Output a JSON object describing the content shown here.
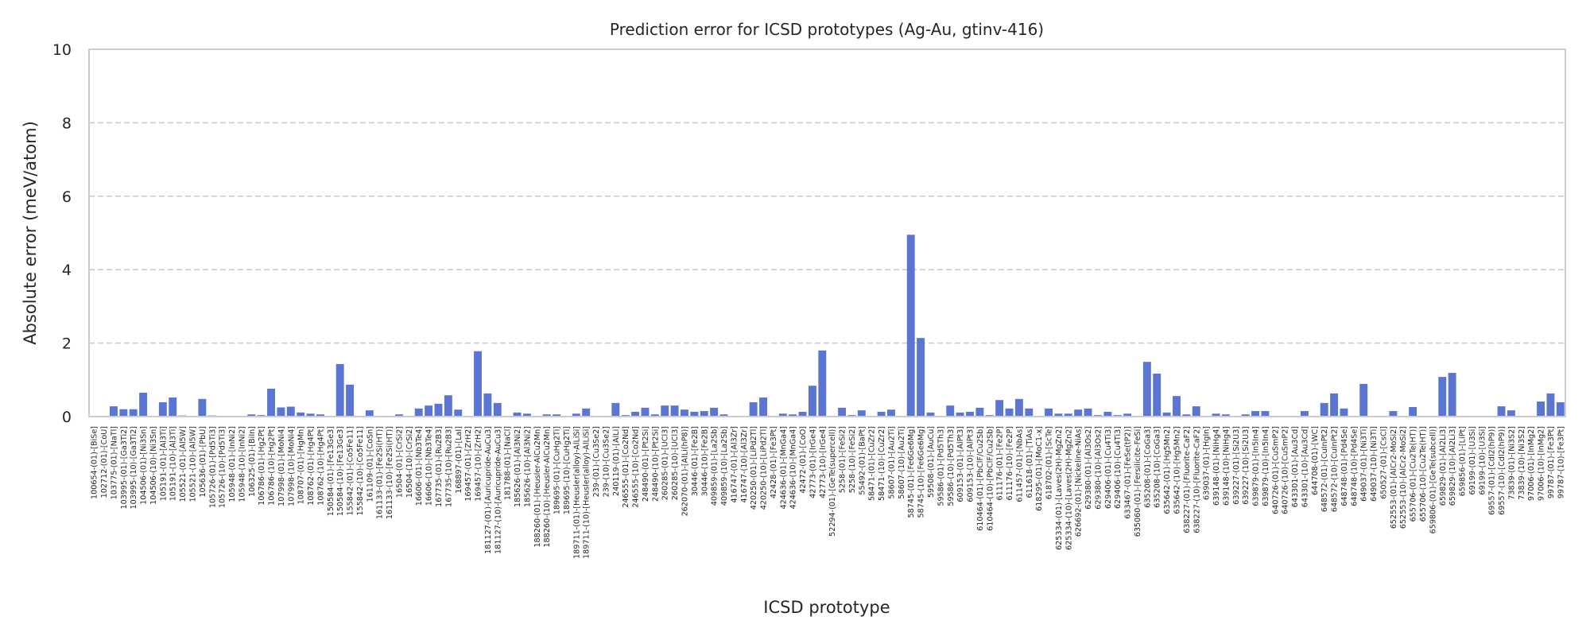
{
  "chart_data": {
    "type": "bar",
    "title": "Prediction error for ICSD prototypes (Ag-Au, gtinv-416)",
    "xlabel": "ICSD prototype",
    "ylabel": "Absolute error (meV/atom)",
    "ylim": [
      0,
      10
    ],
    "yticks": [
      0,
      2,
      4,
      6,
      8,
      10
    ],
    "grid": "y dashed",
    "bar_color": "#5a76d2",
    "categories": [
      "100654-(01)-[BiSe]",
      "102712-(01)-[CoU]",
      "103775-(01)-[NaTl]",
      "103995-(01)-[Ga3Ti2]",
      "103995-(10)-[Ga3Ti2]",
      "104506-(01)-[Ni3Sn]",
      "104506-(10)-[Ni3Sn]",
      "105191-(01)-[Al3Ti]",
      "105191-(10)-[Al3Ti]",
      "105521-(01)-[Al5W]",
      "105521-(10)-[Al5W]",
      "105636-(01)-[PbU]",
      "105726-(01)-[Pd5Ti3]",
      "105726-(10)-[Pd5Ti3]",
      "105948-(01)-[InNi2]",
      "105948-(10)-[InNi2]",
      "106325-(01)-[BiIn]",
      "106786-(01)-[Hg2Pt]",
      "106786-(10)-[Hg2Pt]",
      "107998-(01)-[MoNi4]",
      "107998-(10)-[MoNi4]",
      "108707-(01)-[HgMn]",
      "108762-(01)-[Hg4Pt]",
      "108762-(10)-[Hg4Pt]",
      "150584-(01)-[Fe13Ge3]",
      "150584-(10)-[Fe13Ge3]",
      "155842-(01)-[Co5Fe11]",
      "155842-(10)-[Co5Fe11]",
      "161109-(01)-[CoSn]",
      "161133-(01)-[Fe2Si(HT)]",
      "161133-(10)-[Fe2Si(HT)]",
      "16504-(01)-[CrSi2]",
      "16504-(10)-[CrSi2]",
      "16606-(01)-[Nb3Te4]",
      "16606-(10)-[Nb3Te4]",
      "167735-(01)-[Ru2B3]",
      "167735-(10)-[Ru2B3]",
      "168897-(01)-[LaI]",
      "169457-(01)-[ZrH2]",
      "169457-(10)-[ZrH2]",
      "181127-(01)-[Auricupride-AuCu3]",
      "181127-(10)-[Auricupride-AuCu3]",
      "181788-(01)-[NaCl]",
      "185626-(01)-[Al3Ni2]",
      "185626-(10)-[Al3Ni2]",
      "188260-(01)-[Heusler-AlCu2Mn]",
      "188260-(10)-[Heusler-AlCu2Mn]",
      "189695-(01)-[CuHg2Ti]",
      "189695-(10)-[CuHg2Ti]",
      "189711-(01)-[Heusler(alloy)-AlLiSi]",
      "189711-(10)-[Heusler(alloy)-AlLiSi]",
      "239-(01)-[Cu3Se2]",
      "239-(10)-[Cu3Se2]",
      "240119-(01)-[AlLi]",
      "246555-(01)-[Co2Nd]",
      "246555-(10)-[Co2Nd]",
      "248490-(01)-[Pt2Si]",
      "248490-(10)-[Pt2Si]",
      "260285-(01)-[UCl3]",
      "260285-(10)-[UCl3]",
      "262070-(01)-[AlLi(hP8)]",
      "30446-(01)-[Fe2B]",
      "30446-(10)-[Fe2B]",
      "409859-(01)-[La2Sb]",
      "409859-(10)-[La2Sb]",
      "416747-(01)-[Al3Zr]",
      "416747-(10)-[Al3Zr]",
      "420250-(01)-[LiPd2Tl]",
      "420250-(10)-[LiPd2Tl]",
      "42428-(01)-[Fe3Pt]",
      "424636-(01)-[MnGa4]",
      "424636-(10)-[MnGa4]",
      "42472-(01)-[CoO]",
      "42773-(01)-[IrGe4]",
      "42773-(10)-[IrGe4]",
      "52294-(01)-[GeTe(supercell)]",
      "5258-(01)-[FeSi2]",
      "5258-(10)-[FeSi2]",
      "55492-(01)-[BaPt]",
      "58471-(01)-[CuZr2]",
      "58471-(10)-[CuZr2]",
      "58607-(01)-[Au2Ti]",
      "58607-(10)-[Au2Ti]",
      "58745-(01)-[Fe6Ge6Mg]",
      "58745-(10)-[Fe6Ge6Mg]",
      "59508-(01)-[AuCu]",
      "59586-(01)-[Pd5Th3]",
      "59586-(10)-[Pd5Th3]",
      "609153-(01)-[AlPt3]",
      "609153-(10)-[AlPt3]",
      "610464-(01)-[PbClF/Cu2Sb]",
      "610464-(10)-[PbClF/Cu2Sb]",
      "611176-(01)-[Fe2P]",
      "611176-(10)-[Fe2P]",
      "611457-(01)-[NbAs]",
      "611618-(01)-[TiAs]",
      "618295-(01)-[MoC1-x]",
      "618702-(01)-[ScTe]",
      "625334-(01)-[Laves(2H)-MgZn2]",
      "625334-(10)-[Laves(2H)-MgZn2]",
      "626692-(01)-[Nickeline-NiAs]",
      "629380-(01)-[Al3Os2]",
      "629380-(10)-[Al3Os2]",
      "629406-(01)-[Cu4Ti3]",
      "629406-(10)-[Cu4Ti3]",
      "633467-(01)-[FeSe(tP2)]",
      "635060-(01)-[Fersilicite-FeSi]",
      "635208-(01)-[CoGa3]",
      "635208-(10)-[CoGa3]",
      "635642-(01)-[Hg5Mn2]",
      "635642-(10)-[Hg5Mn2]",
      "638227-(01)-[Fluorite-CaF2]",
      "638227-(10)-[Fluorite-CaF2]",
      "639037-(01)-[HgIn]",
      "639148-(01)-[NiHg4]",
      "639148-(10)-[NiHg4]",
      "639227-(01)-[Si2U3]",
      "639227-(10)-[Si2U3]",
      "639879-(01)-[In5In4]",
      "639879-(10)-[In5In4]",
      "640726-(01)-[CuSmP2]",
      "640726-(10)-[CuSmP2]",
      "643301-(01)-[Au3Cd]",
      "643301-(10)-[Au3Cd]",
      "644708-(01)-[WC]",
      "648572-(01)-[CuInPt2]",
      "648572-(10)-[CuInPt2]",
      "648748-(01)-[Pd4Se]",
      "648748-(10)-[Pd4Se]",
      "649037-(01)-[Ni3Ti]",
      "649037-(10)-[Ni3Ti]",
      "650527-(01)-[CsCl]",
      "652553-(01)-[AlCr2-MoSi2]",
      "652553-(10)-[AlCr2-MoSi2]",
      "655706-(01)-[Cu2Te(HT)]",
      "655706-(10)-[Cu2Te(HT)]",
      "659806-(01)-[GeTe(subcell)]",
      "659829-(01)-[Al2Li3]",
      "659829-(10)-[Al2Li3]",
      "659856-(01)-[LiPt]",
      "69199-(01)-[U3Si]",
      "69199-(10)-[U3Si]",
      "69557-(01)-[CdI2(hP9)]",
      "69557-(10)-[CdI2(hP9)]",
      "73839-(01)-[Ni3S2]",
      "73839-(10)-[Ni3S2]",
      "97006-(01)-[InMg2]",
      "97006-(10)-[InMg2]",
      "99787-(01)-[Fe3Pt]",
      "99787-(10)-[Fe3Pt]"
    ],
    "values": [
      0.01,
      0.01,
      0.28,
      0.2,
      0.2,
      0.65,
      0,
      0.39,
      0.52,
      0.03,
      0,
      0.48,
      0.03,
      0,
      0,
      0.02,
      0.06,
      0.04,
      0.76,
      0.25,
      0.27,
      0.11,
      0.08,
      0.06,
      0,
      1.43,
      0.87,
      0,
      0.17,
      0.02,
      0,
      0.06,
      0,
      0.22,
      0.3,
      0.35,
      0.58,
      0.19,
      0,
      1.78,
      0.63,
      0.37,
      0,
      0.11,
      0.08,
      0,
      0.06,
      0.06,
      0,
      0.08,
      0.22,
      0.02,
      0.02,
      0.37,
      0.04,
      0.13,
      0.24,
      0.06,
      0.3,
      0.3,
      0.19,
      0.13,
      0.15,
      0.24,
      0.06,
      0.01,
      0.01,
      0.39,
      0.52,
      0,
      0.08,
      0.06,
      0.13,
      0.84,
      1.8,
      0.02,
      0.24,
      0.04,
      0.17,
      0.02,
      0.13,
      0.19,
      0,
      4.95,
      2.14,
      0.11,
      0.02,
      0.3,
      0.11,
      0.13,
      0.24,
      0.04,
      0.45,
      0.22,
      0.48,
      0.22,
      0,
      0.22,
      0.08,
      0.08,
      0.19,
      0.22,
      0.04,
      0.13,
      0.04,
      0.08,
      0,
      1.49,
      1.17,
      0.11,
      0.56,
      0.06,
      0.28,
      0.02,
      0.08,
      0.06,
      0.02,
      0.06,
      0.15,
      0.15,
      0.01,
      0,
      0,
      0.15,
      0.02,
      0.37,
      0.63,
      0.22,
      0,
      0.89,
      0,
      0.02,
      0.15,
      0.02,
      0.26,
      0.02,
      0.02,
      1.08,
      1.19,
      0.02,
      0.02,
      0.02,
      0,
      0.28,
      0.17,
      0.02,
      0,
      0.41,
      0.63,
      0.39
    ]
  }
}
